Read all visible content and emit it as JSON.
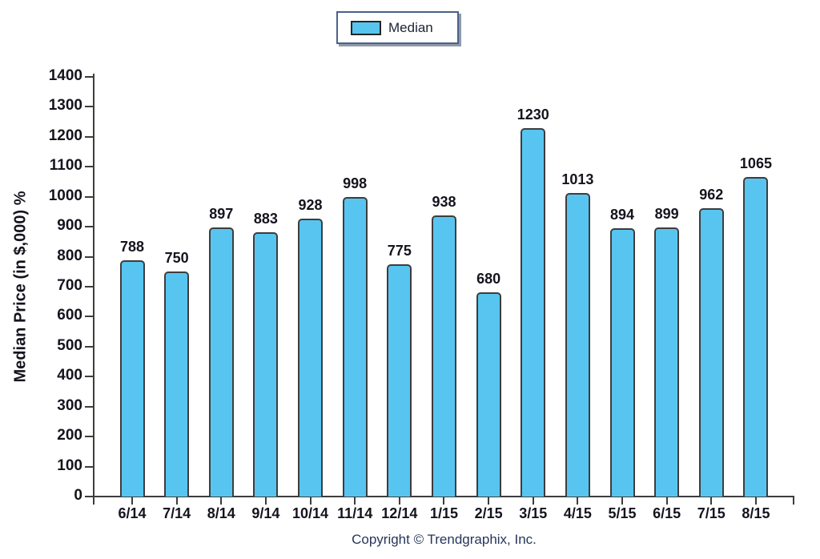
{
  "chart_data": {
    "type": "bar",
    "categories": [
      "6/14",
      "7/14",
      "8/14",
      "9/14",
      "10/14",
      "11/14",
      "12/14",
      "1/15",
      "2/15",
      "3/15",
      "4/15",
      "5/15",
      "6/15",
      "7/15",
      "8/15"
    ],
    "values": [
      788,
      750,
      897,
      883,
      928,
      998,
      775,
      938,
      680,
      1230,
      1013,
      894,
      899,
      962,
      1065
    ],
    "series_name": "Median",
    "legend_label": "Median",
    "ylabel": "Median Price (in $,000) %",
    "xlabel": "",
    "ylim": [
      0,
      1400
    ],
    "ytick_step": 100,
    "grid": "off",
    "legend_position": "top-center",
    "footer": "Copyright © Trendgraphix, Inc.",
    "colors": {
      "bar_fill": "#58c5f0",
      "bar_border": "#3d3d3d",
      "axis": "#3d3d3d",
      "tick_text": "#14141e",
      "legend_border": "#4a618c",
      "footer_text": "#26365a"
    }
  }
}
